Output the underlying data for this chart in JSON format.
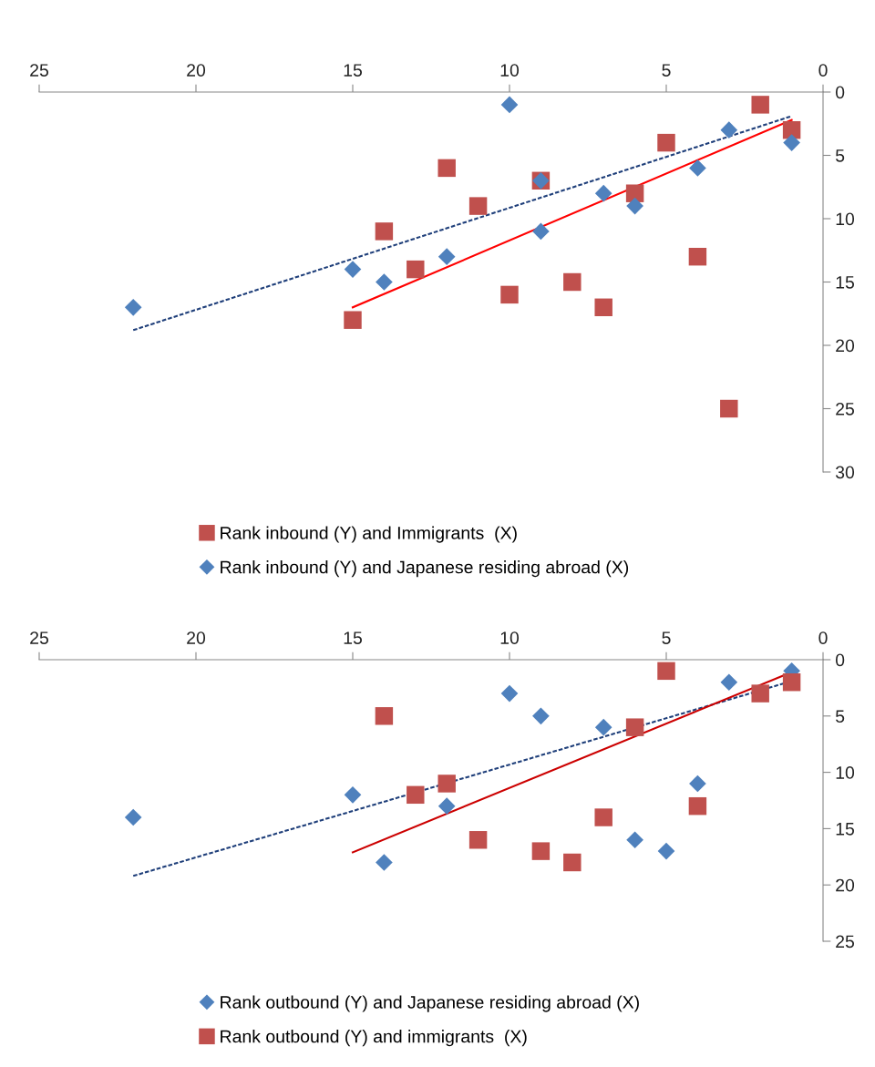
{
  "chart_data": [
    {
      "type": "scatter",
      "xlim": [
        25,
        0
      ],
      "ylim": [
        30,
        0
      ],
      "xticks": [
        25,
        20,
        15,
        10,
        5,
        0
      ],
      "yticks": [
        0,
        5,
        10,
        15,
        20,
        25,
        30
      ],
      "grid": false,
      "legend": "bottom",
      "series": [
        {
          "name": "Rank inbound (Y) and Immigrants  (X)",
          "color": "#c0504d",
          "marker": "square",
          "x": [
            2,
            1,
            5,
            12,
            9,
            6,
            11,
            14,
            4,
            13,
            8,
            10,
            7,
            15,
            3
          ],
          "values": [
            1,
            3,
            4,
            6,
            7,
            8,
            9,
            11,
            13,
            14,
            15,
            16,
            17,
            18,
            25
          ]
        },
        {
          "name": "Rank inbound (Y) and Japanese residing abroad (X)",
          "color": "#4f81bd",
          "marker": "diamond",
          "x": [
            10,
            3,
            1,
            4,
            9,
            7,
            6,
            9,
            12,
            15,
            14,
            22
          ],
          "values": [
            1,
            3,
            4,
            6,
            7,
            8,
            9,
            11,
            13,
            14,
            15,
            17
          ]
        },
        {
          "type": "line",
          "color": "#1f3f7a",
          "line_style": "dashed",
          "marker": "none",
          "x": [
            22,
            1
          ],
          "values": [
            18.8,
            1.9
          ]
        },
        {
          "type": "line",
          "color": "#ff0000",
          "line_style": "solid",
          "marker": "none",
          "x": [
            15,
            1
          ],
          "values": [
            17,
            2.2
          ]
        }
      ]
    },
    {
      "type": "scatter",
      "xlim": [
        25,
        0
      ],
      "ylim": [
        25,
        0
      ],
      "xticks": [
        25,
        20,
        15,
        10,
        5,
        0
      ],
      "yticks": [
        0,
        5,
        10,
        15,
        20,
        25
      ],
      "grid": false,
      "legend": "bottom",
      "series": [
        {
          "name": "Rank outbound (Y) and Japanese residing abroad (X)",
          "color": "#4f81bd",
          "marker": "diamond",
          "x": [
            1,
            3,
            10,
            9,
            7,
            4,
            15,
            12,
            22,
            6,
            5,
            14
          ],
          "values": [
            1,
            2,
            3,
            5,
            6,
            11,
            12,
            13,
            14,
            16,
            17,
            18
          ]
        },
        {
          "name": "Rank outbound (Y) and immigrants  (X)",
          "color": "#c0504d",
          "marker": "square",
          "x": [
            5,
            1,
            2,
            14,
            6,
            12,
            13,
            4,
            7,
            11,
            9,
            8
          ],
          "values": [
            1,
            2,
            3,
            5,
            6,
            11,
            12,
            13,
            14,
            16,
            17,
            18
          ]
        },
        {
          "type": "line",
          "color": "#1f3f7a",
          "line_style": "dashed",
          "marker": "none",
          "x": [
            22,
            1
          ],
          "values": [
            19.2,
            1.9
          ]
        },
        {
          "type": "line",
          "color": "#cc0000",
          "line_style": "solid",
          "marker": "none",
          "x": [
            15,
            1
          ],
          "values": [
            17.1,
            1.1
          ]
        }
      ]
    }
  ]
}
